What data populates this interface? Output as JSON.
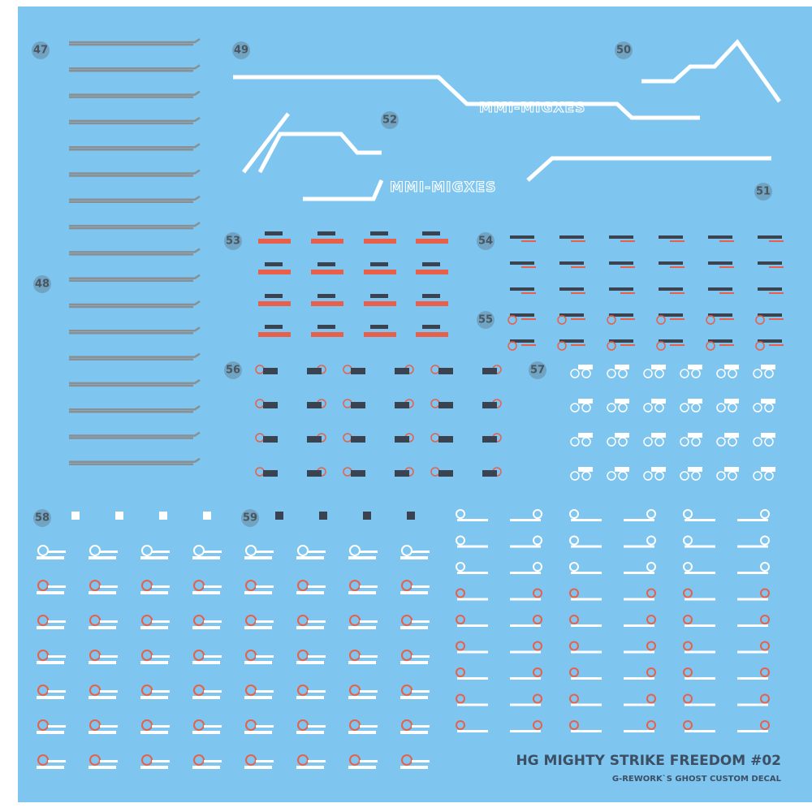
{
  "labels": [
    "47",
    "48",
    "49",
    "50",
    "51",
    "52",
    "53",
    "54",
    "55",
    "56",
    "57",
    "58",
    "59"
  ],
  "logos": [
    "MMI-MIGXES",
    "MMI-MIGXES"
  ],
  "footer": {
    "title": "HG MIGHTY STRIKE FREEDOM #02",
    "subtitle": "G-REWORK`S GHOST CUSTOM DECAL"
  }
}
